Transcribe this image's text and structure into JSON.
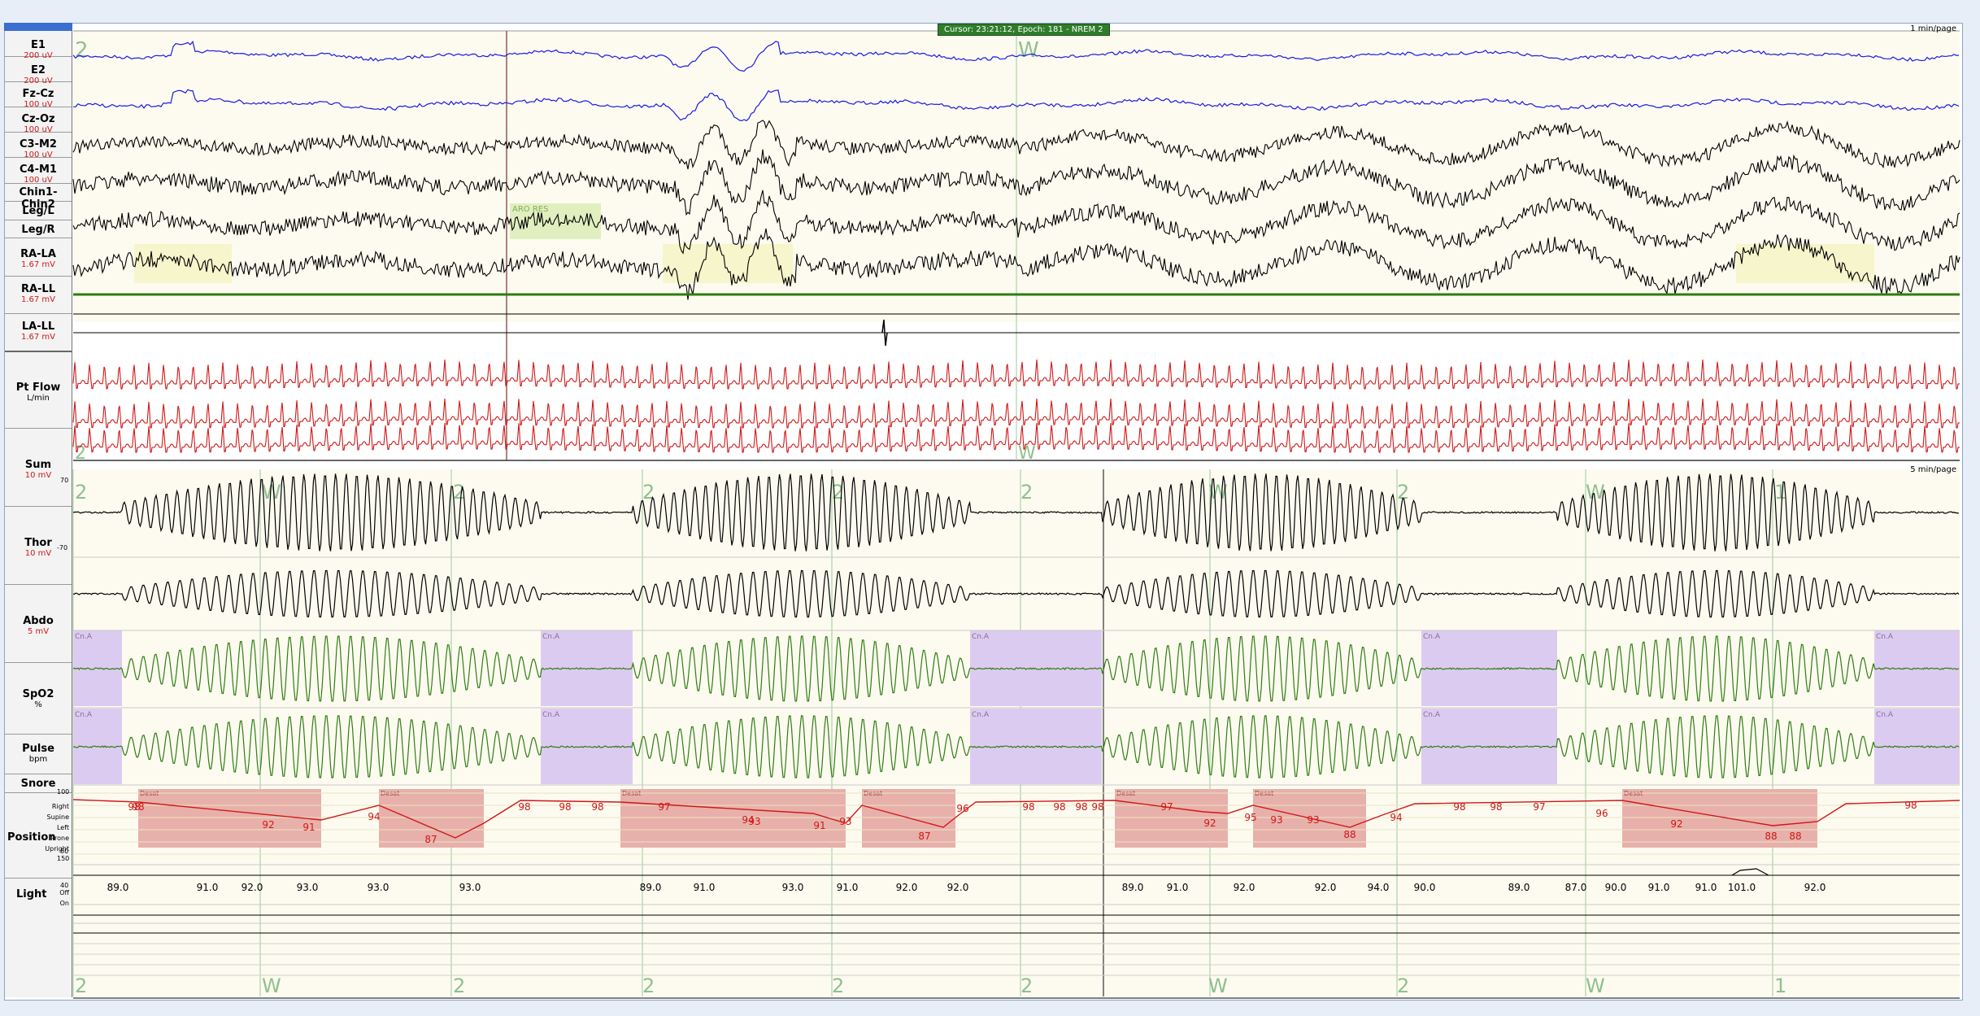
{
  "status": {
    "cursor_text": "Cursor: 23:21:12, Epoch: 181 - NREM 2"
  },
  "top_panel": {
    "scale_text": "1 min/page",
    "stage_labels": [
      "2",
      "W"
    ],
    "annotation": "ARO RES",
    "channels": [
      {
        "name": "E1",
        "unit": "200 uV"
      },
      {
        "name": "E2",
        "unit": "200 uV"
      },
      {
        "name": "Fz-Cz",
        "unit": "100 uV"
      },
      {
        "name": "Cz-Oz",
        "unit": "100 uV"
      },
      {
        "name": "C3-M2",
        "unit": "100 uV"
      },
      {
        "name": "C4-M1",
        "unit": "100 uV"
      },
      {
        "name": "Chin1-Chin2",
        "unit": ""
      },
      {
        "name": "Leg/L",
        "unit": ""
      },
      {
        "name": "Leg/R",
        "unit": ""
      },
      {
        "name": "RA-LA",
        "unit": "1.67 mV"
      },
      {
        "name": "RA-LL",
        "unit": "1.67 mV"
      },
      {
        "name": "LA-LL",
        "unit": "1.67 mV"
      }
    ]
  },
  "bottom_panel": {
    "scale_text": "5 min/page",
    "channels": {
      "flow": {
        "name": "Pt Flow",
        "unit": "L/min",
        "top_tick": "70",
        "bottom_tick": "-70"
      },
      "sum": {
        "name": "Sum",
        "unit": "10 mV"
      },
      "thor": {
        "name": "Thor",
        "unit": "10 mV"
      },
      "abdo": {
        "name": "Abdo",
        "unit": "5 mV"
      },
      "spo2": {
        "name": "SpO2",
        "unit": "%",
        "top_tick": "100",
        "bottom_tick": "80"
      },
      "pulse": {
        "name": "Pulse",
        "unit": "bpm",
        "top_tick": "150",
        "bottom_tick": "40"
      },
      "snore": {
        "name": "Snore"
      },
      "position": {
        "name": "Position",
        "sub": [
          "Right",
          "Supine",
          "Left",
          "Prone",
          "Upright"
        ]
      },
      "light": {
        "name": "Light",
        "sub": [
          "Off",
          "On"
        ]
      }
    },
    "hypnogram_top": [
      "2",
      "W",
      "2",
      "2",
      "2",
      "2",
      "W",
      "2",
      "W",
      "1"
    ],
    "hypnogram_bottom": [
      "2",
      "W",
      "2",
      "2",
      "2",
      "2",
      "W",
      "2",
      "W",
      "1"
    ],
    "event_tag_central_apnea": "Cn.A",
    "event_tag_desat": "Desat",
    "spo2_values": [
      "98",
      "98",
      "92",
      "91",
      "94",
      "87",
      "98",
      "98",
      "98",
      "97",
      "94",
      "93",
      "91",
      "93",
      "87",
      "96",
      "98",
      "98",
      "98",
      "98",
      "97",
      "92",
      "95",
      "93",
      "93",
      "88",
      "94",
      "98",
      "98",
      "97",
      "96",
      "92",
      "88",
      "88",
      "98"
    ],
    "pulse_values": [
      "89.0",
      "91.0",
      "92.0",
      "93.0",
      "93.0",
      "93.0",
      "89.0",
      "91.0",
      "93.0",
      "91.0",
      "92.0",
      "92.0",
      "89.0",
      "91.0",
      "92.0",
      "92.0",
      "94.0",
      "90.0",
      "89.0",
      "87.0",
      "90.0",
      "91.0",
      "91.0",
      "101.0",
      "92.0"
    ]
  },
  "colors": {
    "eeg": "#000000",
    "eog": "#1a1ae6",
    "ecg": "#d01818",
    "resp_effort": "#2e7d12",
    "apnea": "#dccbf0",
    "desat": "#e8b0aa",
    "spo2_line": "#d01818",
    "hypnogram": "#9bc99b",
    "chin": "#2e7d12"
  }
}
